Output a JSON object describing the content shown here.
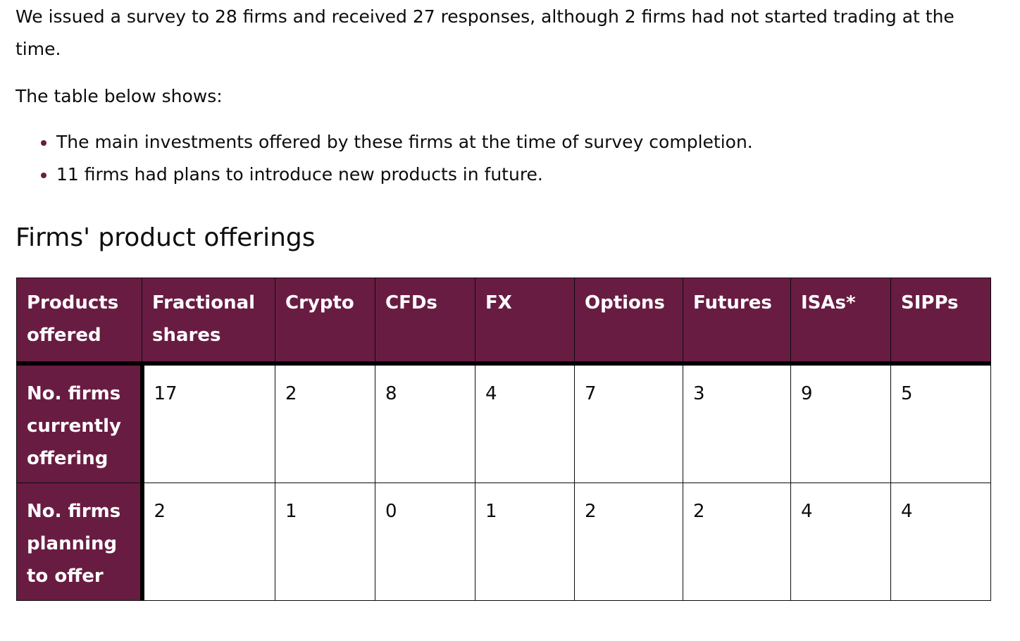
{
  "intro": "We issued a survey to 28 firms and received 27 responses, although 2 firms had not started trading at the time.",
  "lead": "The table below shows:",
  "bullets": [
    "The main investments offered by these firms at the time of survey completion.",
    "11 firms had plans to introduce new products in future."
  ],
  "heading": "Firms' product offerings",
  "table": {
    "headers": [
      "Products offered",
      "Fractional shares",
      "Crypto",
      "CFDs",
      "FX",
      "Options",
      "Futures",
      "ISAs*",
      "SIPPs"
    ],
    "rows": [
      {
        "label": "No. firms currently offering",
        "values": [
          "17",
          "2",
          "8",
          "4",
          "7",
          "3",
          "9",
          "5"
        ]
      },
      {
        "label": "No. firms planning to offer",
        "values": [
          "2",
          "1",
          "0",
          "1",
          "2",
          "2",
          "4",
          "4"
        ]
      }
    ]
  },
  "colors": {
    "header_bg": "#691c42",
    "header_text": "#ffffff"
  }
}
